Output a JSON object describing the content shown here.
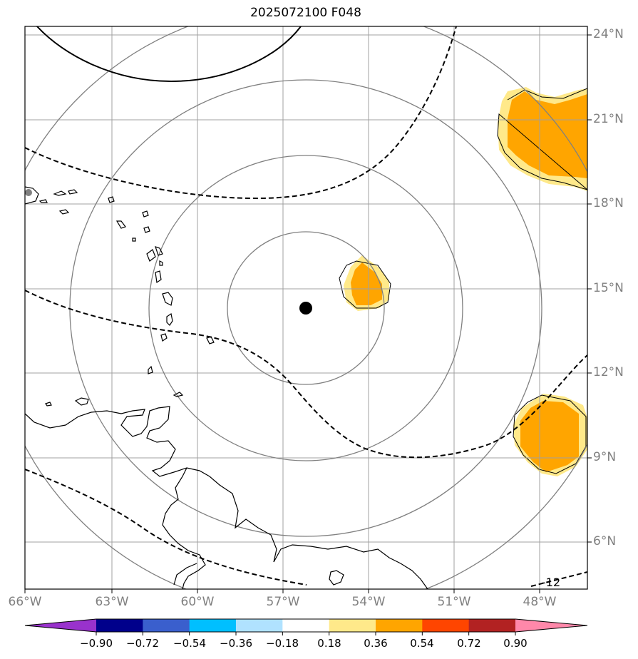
{
  "title": "2025072100 F048",
  "latitude_labels": [
    "24°N",
    "21°N",
    "18°N",
    "15°N",
    "12°N",
    "9°N",
    "6°N"
  ],
  "longitude_labels": [
    "66°W",
    "63°W",
    "60°W",
    "57°W",
    "54°W",
    "51°W",
    "48°W"
  ],
  "contour_label": "-12",
  "colorbar": {
    "tick_labels": [
      "−0.90",
      "−0.72",
      "−0.54",
      "−0.36",
      "−0.18",
      "0.18",
      "0.36",
      "0.54",
      "0.72",
      "0.90"
    ],
    "colors": [
      "#9932cc",
      "#00008b",
      "#3a5fcd",
      "#00bfff",
      "#b0e2ff",
      "#ffffff",
      "#ffe98a",
      "#ffa500",
      "#ff4500",
      "#b22222",
      "#ff88aa"
    ]
  },
  "colors": {
    "gridline": "#a0a0a0",
    "range_ring": "#808080",
    "coast": "#000000",
    "center_marker": "#000000",
    "fill_light": "#ffe98a",
    "fill_mid": "#ffa500"
  },
  "center_marker": {
    "lon": -56.2,
    "lat": 14.3
  }
}
